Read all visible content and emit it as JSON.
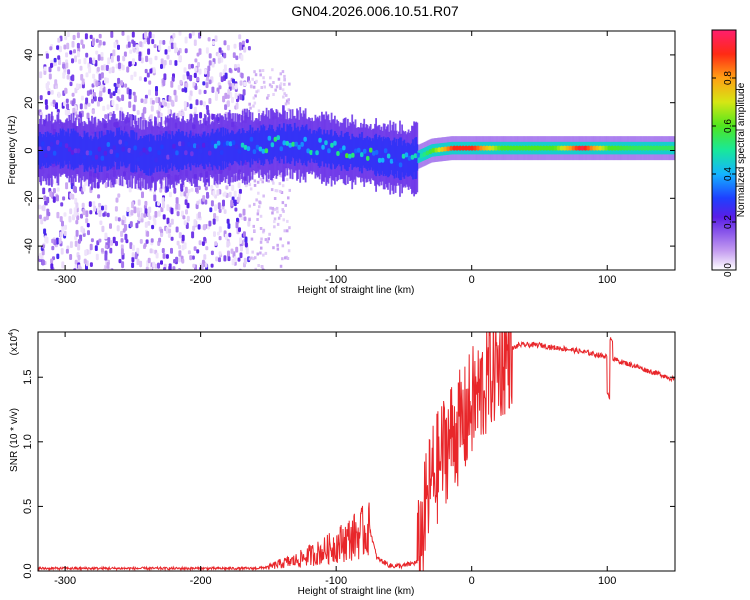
{
  "title": "GN04.2026.006.10.51.R07",
  "chart_data": [
    {
      "type": "heatmap",
      "name": "spectrogram",
      "xlabel": "Height of straight line (km)",
      "ylabel": "Frequency (Hz)",
      "xlim": [
        -320,
        150
      ],
      "ylim": [
        -50,
        50
      ],
      "xticks": [
        -300,
        -200,
        -100,
        0,
        100
      ],
      "yticks": [
        -40,
        -20,
        0,
        20,
        40
      ],
      "colorbar": {
        "label": "Normalized spectral amplitude",
        "range": [
          0.0,
          1.0
        ],
        "ticks": [
          "0.0",
          "0.2",
          "0.4",
          "0.6",
          "0.8"
        ],
        "tick_values": [
          0.0,
          0.2,
          0.4,
          0.6,
          0.8
        ]
      },
      "ridge": {
        "x": [
          -320,
          -300,
          -280,
          -260,
          -240,
          -220,
          -200,
          -180,
          -160,
          -140,
          -120,
          -100,
          -80,
          -60,
          -45,
          -30,
          -15,
          0,
          20,
          40,
          60,
          80,
          100,
          120,
          150
        ],
        "center_freq": [
          0,
          1,
          -1,
          1,
          -2,
          0,
          0,
          1,
          2,
          3,
          2,
          0,
          -1,
          -3,
          -4,
          0,
          1,
          1,
          1,
          1,
          1,
          1,
          1,
          1,
          1
        ],
        "peak_amplitude": [
          0.3,
          0.25,
          0.3,
          0.28,
          0.3,
          0.28,
          0.3,
          0.4,
          0.45,
          0.5,
          0.5,
          0.5,
          0.5,
          0.45,
          0.4,
          0.6,
          0.9,
          0.9,
          0.6,
          0.6,
          0.6,
          0.95,
          0.6,
          0.55,
          0.55
        ]
      },
      "scatter_region": {
        "x_range": [
          -320,
          -165
        ],
        "freq_range": [
          -50,
          50
        ],
        "amplitude_range": [
          0.02,
          0.25
        ]
      }
    },
    {
      "type": "line",
      "name": "snr",
      "xlabel": "Height of straight line (km)",
      "ylabel": "SNR (10 * v/v)",
      "scale_label": "(x10",
      "scale_exponent": "4",
      "xlim": [
        -320,
        150
      ],
      "ylim": [
        0,
        1.85
      ],
      "xticks": [
        -300,
        -200,
        -100,
        0,
        100
      ],
      "yticks": [
        "0.0",
        "0.5",
        "1.0",
        "1.5"
      ],
      "ytick_values": [
        0.0,
        0.5,
        1.0,
        1.5
      ],
      "line_color": "#e8262a",
      "series": [
        {
          "name": "SNR",
          "x": [
            -320,
            -300,
            -250,
            -200,
            -160,
            -150,
            -140,
            -130,
            -120,
            -110,
            -100,
            -90,
            -80,
            -75,
            -70,
            -60,
            -50,
            -40,
            -35,
            -30,
            -25,
            -20,
            -15,
            -10,
            -5,
            0,
            5,
            10,
            15,
            20,
            25,
            30,
            35,
            40,
            50,
            60,
            70,
            80,
            90,
            100,
            110,
            120,
            130,
            140,
            150
          ],
          "y": [
            0.02,
            0.02,
            0.02,
            0.02,
            0.02,
            0.03,
            0.06,
            0.08,
            0.12,
            0.15,
            0.2,
            0.25,
            0.3,
            0.32,
            0.1,
            0.04,
            0.04,
            0.07,
            0.4,
            0.7,
            0.8,
            0.95,
            1.05,
            1.1,
            1.15,
            1.3,
            1.35,
            1.45,
            1.55,
            1.6,
            1.65,
            1.72,
            1.75,
            1.75,
            1.75,
            1.73,
            1.72,
            1.7,
            1.68,
            1.66,
            1.62,
            1.59,
            1.55,
            1.52,
            1.48
          ]
        }
      ]
    }
  ]
}
